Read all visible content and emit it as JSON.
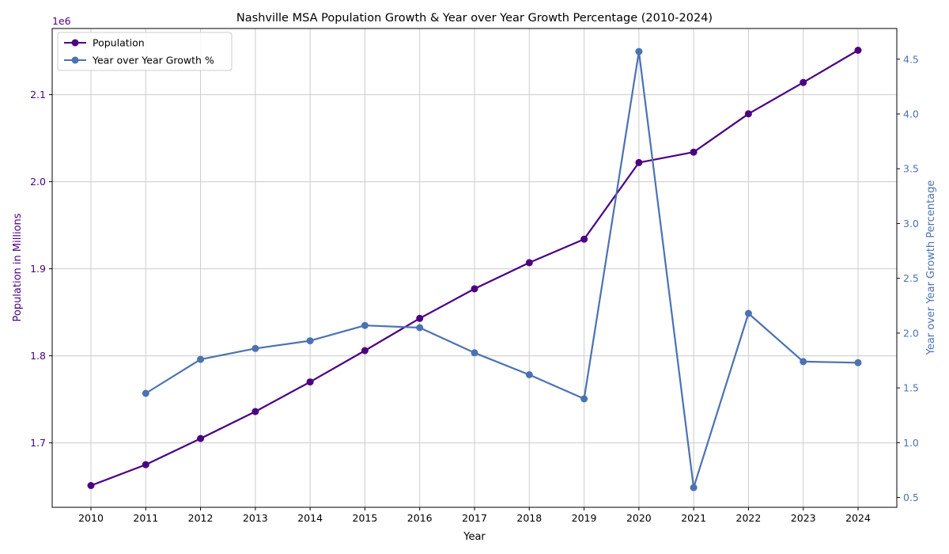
{
  "chart_data": {
    "type": "line",
    "title": "Nashville MSA Population Growth & Year over Year Growth Percentage (2010-2024)",
    "xlabel": "Year",
    "ylabel": "Population in Millions",
    "y2label": "Year over Year Growth Percentage",
    "yoffset_label": "1e6",
    "categories": [
      "2010",
      "2011",
      "2012",
      "2013",
      "2014",
      "2015",
      "2016",
      "2017",
      "2018",
      "2019",
      "2020",
      "2021",
      "2022",
      "2023",
      "2024"
    ],
    "ylim": [
      1.626,
      2.176
    ],
    "y2lim": [
      0.41,
      4.78
    ],
    "yticks": [
      "1.7",
      "1.8",
      "1.9",
      "2.0",
      "2.1"
    ],
    "y2ticks": [
      "0.5",
      "1.0",
      "1.5",
      "2.0",
      "2.5",
      "3.0",
      "3.5",
      "4.0",
      "4.5"
    ],
    "grid": true,
    "legend_position": "top-left",
    "colors": {
      "population": "#4b0082",
      "growth": "#4c72b0"
    },
    "series": [
      {
        "name": "Population",
        "axis": "left",
        "values": [
          1.651,
          1.675,
          1.705,
          1.736,
          1.77,
          1.806,
          1.843,
          1.877,
          1.907,
          1.934,
          2.022,
          2.034,
          2.078,
          2.114,
          2.151
        ]
      },
      {
        "name": "Year over Year Growth %",
        "axis": "right",
        "values": [
          null,
          1.45,
          1.76,
          1.86,
          1.93,
          2.07,
          2.05,
          1.82,
          1.62,
          1.4,
          4.57,
          0.59,
          2.18,
          1.74,
          1.73
        ]
      }
    ]
  }
}
